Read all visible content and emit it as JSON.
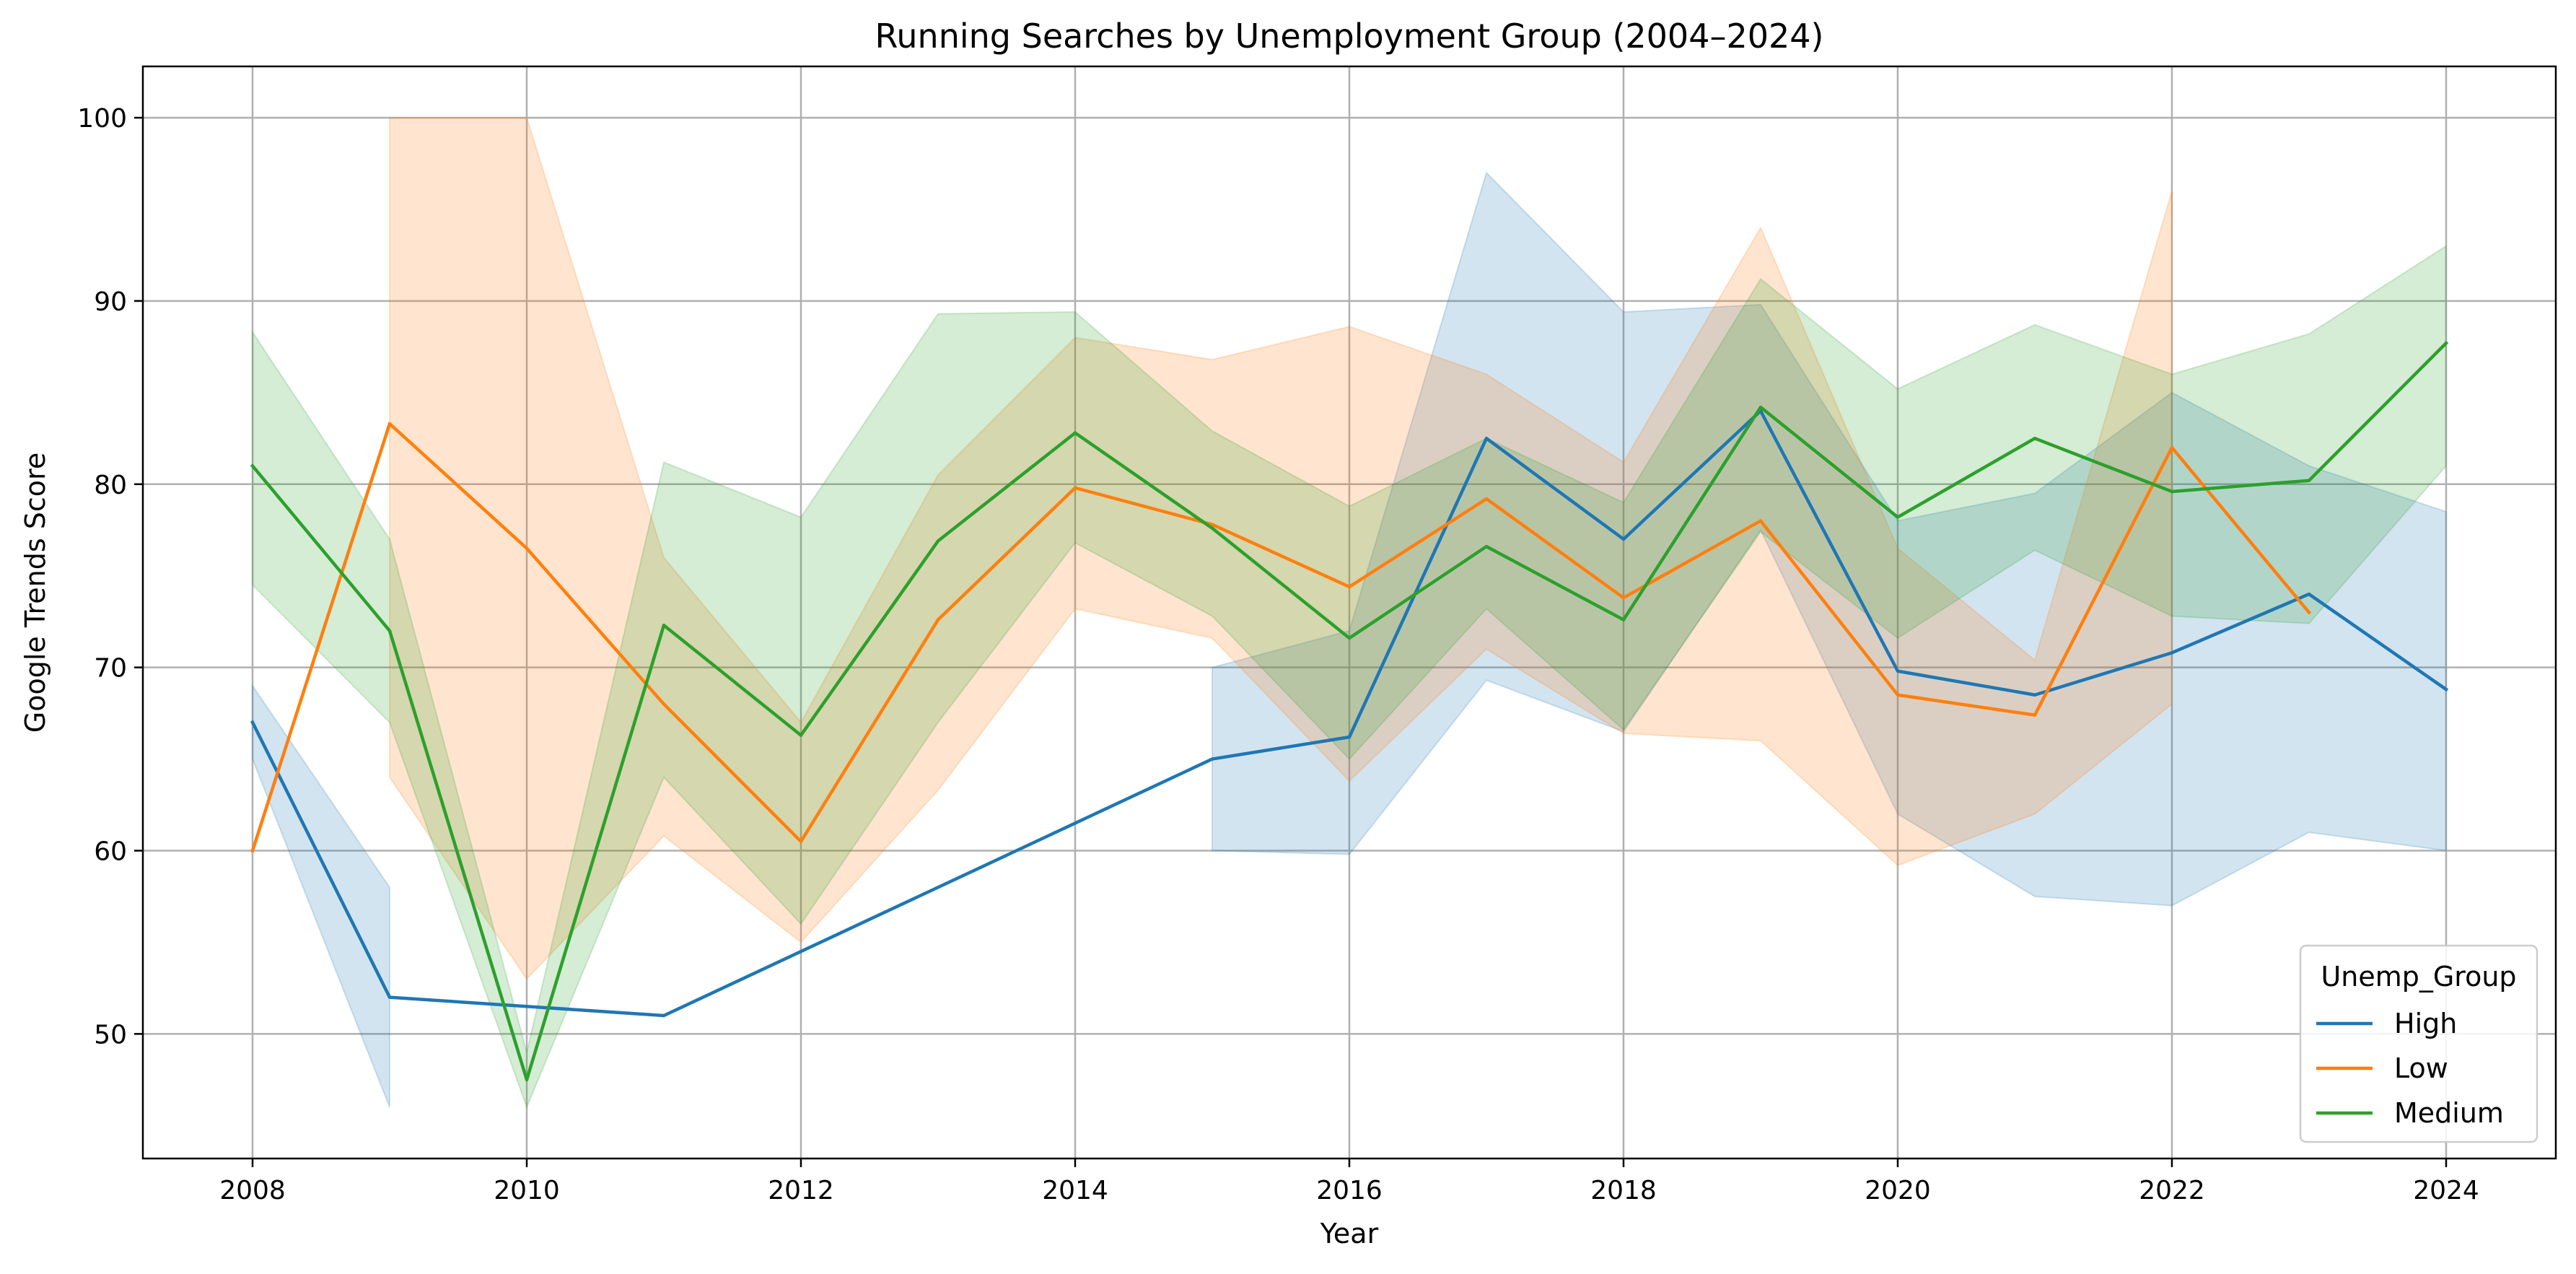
{
  "chart_data": {
    "type": "line",
    "title": "Running Searches by Unemployment Group (2004–2024)",
    "xlabel": "Year",
    "ylabel": "Google Trends Score",
    "xlim": [
      2007.2,
      2024.8
    ],
    "ylim": [
      43.2,
      102.8
    ],
    "x_ticks": [
      "2008",
      "2010",
      "2012",
      "2014",
      "2016",
      "2018",
      "2020",
      "2022",
      "2024"
    ],
    "y_ticks": [
      "50",
      "60",
      "70",
      "80",
      "90",
      "100"
    ],
    "grid": true,
    "legend": {
      "title": "Unemp_Group",
      "position": "lower-right"
    },
    "series": [
      {
        "name": "High",
        "color": "#1f77b4",
        "x": [
          2008,
          2009,
          2011,
          2015,
          2016,
          2017,
          2018,
          2019,
          2020,
          2021,
          2022,
          2023,
          2024
        ],
        "y": [
          67,
          52,
          51,
          65,
          66.2,
          82.5,
          77,
          84,
          69.8,
          68.5,
          70.8,
          74,
          68.8
        ],
        "ci": {
          "segments": [
            {
              "x": [
                2008,
                2009
              ],
              "lower": [
                65,
                46
              ],
              "upper": [
                69,
                58
              ]
            },
            {
              "x": [
                2015,
                2016,
                2017,
                2018,
                2019,
                2020,
                2021,
                2022,
                2023,
                2024
              ],
              "lower": [
                60,
                59.8,
                69.3,
                66.5,
                77.5,
                62,
                57.5,
                57,
                61,
                60
              ],
              "upper": [
                70,
                72,
                97,
                89.4,
                89.8,
                78,
                79.5,
                85,
                81,
                78.5
              ]
            }
          ]
        }
      },
      {
        "name": "Low",
        "color": "#ff7f0e",
        "x": [
          2008,
          2009,
          2010,
          2011,
          2012,
          2013,
          2014,
          2015,
          2016,
          2017,
          2018,
          2019,
          2020,
          2021,
          2022,
          2023
        ],
        "y": [
          60,
          83.3,
          76.5,
          68,
          60.5,
          72.6,
          79.8,
          77.8,
          74.4,
          79.2,
          73.8,
          78,
          68.5,
          67.4,
          82,
          73
        ],
        "ci": {
          "segments": [
            {
              "x": [
                2009,
                2010,
                2011,
                2012,
                2013,
                2014,
                2015,
                2016,
                2017,
                2018,
                2019,
                2020,
                2021,
                2022
              ],
              "lower": [
                64,
                53,
                60.8,
                55,
                63.3,
                73.2,
                71.6,
                63.8,
                71,
                66.4,
                66,
                59.2,
                62,
                68
              ],
              "upper": [
                100,
                100,
                76,
                67,
                80.5,
                88,
                86.8,
                88.6,
                86,
                81.2,
                94,
                76.5,
                70.4,
                96
              ]
            }
          ]
        }
      },
      {
        "name": "Medium",
        "color": "#2ca02c",
        "x": [
          2008,
          2009,
          2010,
          2011,
          2012,
          2013,
          2014,
          2015,
          2016,
          2017,
          2018,
          2019,
          2020,
          2021,
          2022,
          2023,
          2024
        ],
        "y": [
          81,
          72,
          47.5,
          72.3,
          66.3,
          76.9,
          82.8,
          77.6,
          71.6,
          76.6,
          72.6,
          84.2,
          78.2,
          82.5,
          79.6,
          80.2,
          87.7
        ],
        "ci": {
          "segments": [
            {
              "x": [
                2008,
                2009,
                2010,
                2011,
                2012,
                2013,
                2014,
                2015,
                2016,
                2017,
                2018,
                2019,
                2020,
                2021,
                2022,
                2023,
                2024
              ],
              "lower": [
                74.5,
                67,
                46,
                64,
                56,
                67,
                76.8,
                72.8,
                65,
                73.2,
                66.6,
                77.4,
                71.6,
                76.4,
                72.8,
                72.4,
                81
              ],
              "upper": [
                88.3,
                77,
                49,
                81.2,
                78.2,
                89.3,
                89.4,
                82.9,
                78.8,
                82.5,
                79,
                91.2,
                85.2,
                88.7,
                86,
                88.2,
                93
              ]
            }
          ]
        }
      }
    ]
  }
}
